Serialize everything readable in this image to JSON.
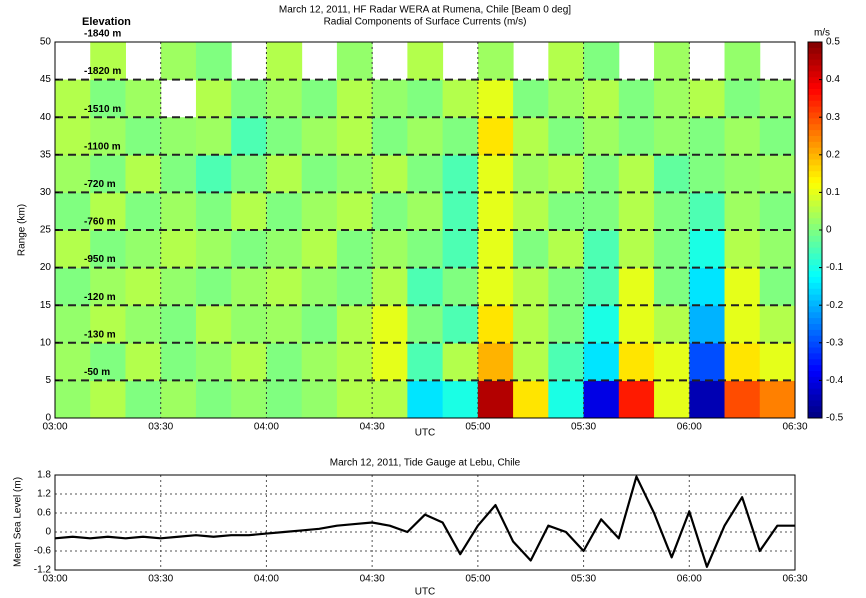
{
  "chart_data": [
    {
      "type": "heatmap",
      "title": "March 12, 2011,  HF Radar WERA at Rumena, Chile  [Beam 0 deg]",
      "subtitle": "Radial Components of Surface Currents  (m/s)",
      "xlabel": "UTC",
      "ylabel": "Range (km)",
      "x": [
        "03:00",
        "03:10",
        "03:20",
        "03:30",
        "03:40",
        "03:50",
        "04:00",
        "04:10",
        "04:20",
        "04:30",
        "04:40",
        "04:50",
        "05:00",
        "05:10",
        "05:20",
        "05:30",
        "05:40",
        "05:50",
        "06:00",
        "06:10",
        "06:20"
      ],
      "y": [
        0,
        5,
        10,
        15,
        20,
        25,
        30,
        35,
        40,
        45
      ],
      "values": [
        [
          0.02,
          0.05,
          0,
          0.03,
          0,
          0.02,
          0,
          0.02,
          0.05,
          0.05,
          -0.15,
          -0.1,
          0.45,
          0.15,
          -0.1,
          -0.4,
          0.35,
          0.1,
          -0.45,
          0.3,
          0.25
        ],
        [
          0.03,
          0,
          0.05,
          0,
          0.02,
          0.05,
          0,
          0.03,
          0.05,
          0.1,
          -0.05,
          0.05,
          0.2,
          0.05,
          -0.05,
          -0.15,
          0.15,
          0.1,
          -0.3,
          0.15,
          0.1
        ],
        [
          0.02,
          0.05,
          0.02,
          0,
          0.05,
          0.02,
          0.03,
          0,
          0.05,
          0.1,
          0,
          -0.05,
          0.15,
          0.05,
          0,
          -0.1,
          0.1,
          0.05,
          -0.2,
          0.1,
          0.05
        ],
        [
          0,
          0.03,
          0.05,
          0.02,
          0,
          0.03,
          0.05,
          0.02,
          0,
          0.05,
          -0.05,
          0,
          0.1,
          0.05,
          0,
          -0.05,
          0.1,
          0,
          -0.15,
          0.1,
          0
        ],
        [
          0.05,
          0,
          0.02,
          0.05,
          0.03,
          0,
          0.02,
          0.05,
          0,
          0.03,
          0,
          -0.05,
          0.1,
          0,
          0.05,
          -0.05,
          0.05,
          0,
          -0.1,
          0.05,
          0.02
        ],
        [
          0,
          0.05,
          0,
          0.03,
          0,
          0.05,
          0,
          0.03,
          0.05,
          0,
          0.03,
          -0.05,
          0.1,
          0.05,
          0,
          0,
          0.05,
          0,
          -0.05,
          0.03,
          0
        ],
        [
          0.03,
          0,
          0.05,
          0,
          -0.05,
          0,
          0.05,
          0,
          0.02,
          0.05,
          0,
          -0.05,
          0.1,
          0.03,
          0.05,
          0,
          0.05,
          -0.03,
          0,
          0.02,
          0.03
        ],
        [
          0.05,
          0.03,
          0,
          0.02,
          0.03,
          -0.05,
          0,
          0.03,
          0.05,
          0,
          0.03,
          0,
          0.15,
          0.05,
          0,
          0.03,
          0,
          0.02,
          0,
          0.03,
          0
        ],
        [
          0.05,
          0,
          0.03,
          null,
          0.05,
          0,
          0.03,
          0,
          0.05,
          0.02,
          0,
          0.05,
          0.1,
          0,
          0.03,
          0.05,
          0,
          0.03,
          0.05,
          0,
          0.02
        ],
        [
          null,
          0.05,
          null,
          0.03,
          0,
          null,
          0.05,
          null,
          0.02,
          null,
          0.05,
          null,
          0.03,
          null,
          0.05,
          0,
          null,
          0.03,
          null,
          0.02,
          null
        ]
      ],
      "xlim": [
        "03:00",
        "06:30"
      ],
      "xticks": [
        "03:00",
        "03:30",
        "04:00",
        "04:30",
        "05:00",
        "05:30",
        "06:00",
        "06:30"
      ],
      "ylim": [
        0,
        50
      ],
      "yticks": [
        0,
        5,
        10,
        15,
        20,
        25,
        30,
        35,
        40,
        45,
        50
      ],
      "clim": [
        -0.5,
        0.5
      ],
      "clabel": "m/s",
      "cticks": [
        0.5,
        0.4,
        0.3,
        0.2,
        0.1,
        0,
        -0.1,
        -0.2,
        -0.3,
        -0.4,
        -0.5
      ],
      "colormap": "jet",
      "elevation_header": "Elevation",
      "elevation_labels": [
        {
          "y": 50,
          "label": "-1840 m"
        },
        {
          "y": 45,
          "label": "-1820 m"
        },
        {
          "y": 40,
          "label": "-1510 m"
        },
        {
          "y": 35,
          "label": "-1100 m"
        },
        {
          "y": 30,
          "label": "-720 m"
        },
        {
          "y": 25,
          "label": "-760 m"
        },
        {
          "y": 20,
          "label": "-950 m"
        },
        {
          "y": 15,
          "label": "-120 m"
        },
        {
          "y": 10,
          "label": "-130 m"
        },
        {
          "y": 5,
          "label": "-50 m"
        }
      ],
      "hlines": [
        5,
        10,
        15,
        20,
        25,
        30,
        35,
        40,
        45
      ]
    },
    {
      "type": "line",
      "title": "March 12, 2011,  Tide Gauge at Lebu, Chile",
      "xlabel": "UTC",
      "ylabel": "Mean Sea Level  (m)",
      "x": [
        "03:00",
        "03:05",
        "03:10",
        "03:15",
        "03:20",
        "03:25",
        "03:30",
        "03:35",
        "03:40",
        "03:45",
        "03:50",
        "03:55",
        "04:00",
        "04:05",
        "04:10",
        "04:15",
        "04:20",
        "04:25",
        "04:30",
        "04:35",
        "04:40",
        "04:45",
        "04:50",
        "04:55",
        "05:00",
        "05:05",
        "05:10",
        "05:15",
        "05:20",
        "05:25",
        "05:30",
        "05:35",
        "05:40",
        "05:45",
        "05:50",
        "05:55",
        "06:00",
        "06:05",
        "06:10",
        "06:15",
        "06:20",
        "06:25",
        "06:30"
      ],
      "values": [
        -0.2,
        -0.15,
        -0.2,
        -0.15,
        -0.2,
        -0.15,
        -0.2,
        -0.15,
        -0.1,
        -0.15,
        -0.1,
        -0.1,
        -0.05,
        0,
        0.05,
        0.1,
        0.2,
        0.25,
        0.3,
        0.2,
        0,
        0.55,
        0.3,
        -0.7,
        0.2,
        0.85,
        -0.3,
        -0.9,
        0.2,
        0,
        -0.6,
        0.4,
        -0.2,
        1.75,
        0.6,
        -0.8,
        0.65,
        -1.1,
        0.2,
        1.1,
        -0.6,
        0.2,
        0.2
      ],
      "color": "#000000",
      "xlim": [
        "03:00",
        "06:30"
      ],
      "xticks": [
        "03:00",
        "03:30",
        "04:00",
        "04:30",
        "05:00",
        "05:30",
        "06:00",
        "06:30"
      ],
      "ylim": [
        -1.2,
        1.8
      ],
      "yticks": [
        1.8,
        1.2,
        0.6,
        0,
        -0.6,
        -1.2
      ],
      "grid": true
    }
  ]
}
